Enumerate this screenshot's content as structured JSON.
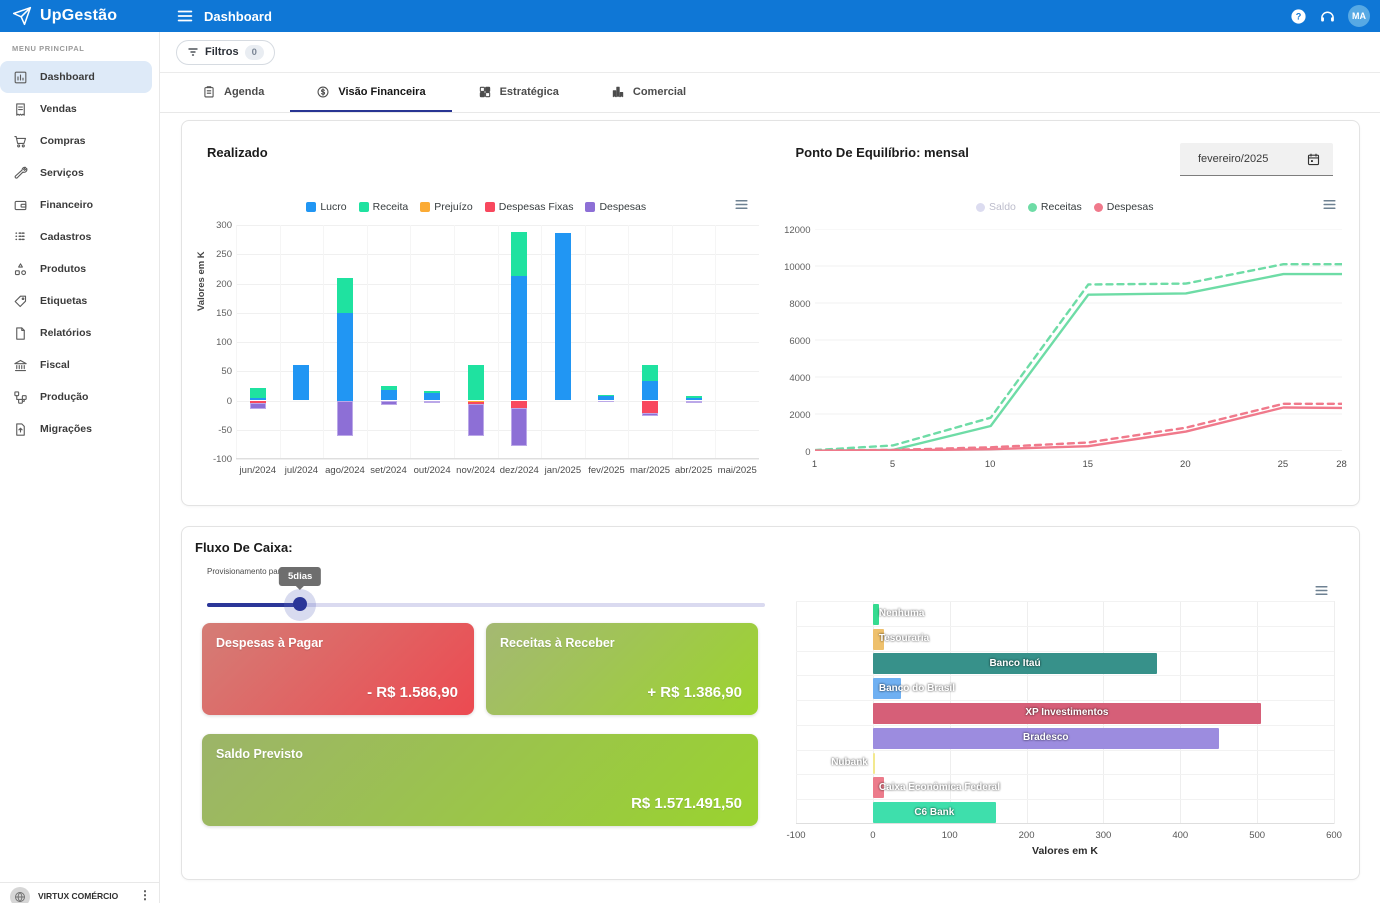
{
  "app": {
    "name": "UpGestão",
    "page_title": "Dashboard",
    "avatar_initials": "MA",
    "topbar_color": "#0f77d6"
  },
  "sidebar": {
    "section_label": "MENU PRINCIPAL",
    "items": [
      {
        "label": "Dashboard",
        "icon": "dashboard-icon",
        "active": true
      },
      {
        "label": "Vendas",
        "icon": "receipt-icon"
      },
      {
        "label": "Compras",
        "icon": "cart-icon"
      },
      {
        "label": "Serviços",
        "icon": "wrench-icon"
      },
      {
        "label": "Financeiro",
        "icon": "wallet-icon"
      },
      {
        "label": "Cadastros",
        "icon": "grid-icon"
      },
      {
        "label": "Produtos",
        "icon": "shapes-icon"
      },
      {
        "label": "Etiquetas",
        "icon": "tag-icon"
      },
      {
        "label": "Relatórios",
        "icon": "file-icon"
      },
      {
        "label": "Fiscal",
        "icon": "bank-icon"
      },
      {
        "label": "Produção",
        "icon": "flow-icon"
      },
      {
        "label": "Migrações",
        "icon": "file-upload-icon"
      }
    ],
    "footer": {
      "company": "VIRTUX COMÉRCIO"
    }
  },
  "filters": {
    "label": "Filtros",
    "count": "0"
  },
  "tabs": [
    {
      "label": "Agenda",
      "icon": "clipboard-icon"
    },
    {
      "label": "Visão Financeira",
      "icon": "coin-icon",
      "active": true
    },
    {
      "label": "Estratégica",
      "icon": "strategy-icon"
    },
    {
      "label": "Comercial",
      "icon": "chart-icon"
    }
  ],
  "panels": {
    "realizado": {
      "title": "Realizado"
    },
    "equilibrio": {
      "title": "Ponto De Equilíbrio: mensal",
      "period_value": "fevereiro/2025"
    },
    "fluxo": {
      "title": "Fluxo De Caixa:",
      "slider_label": "Provisionamento para",
      "slider_tooltip": "5dias",
      "cards": [
        {
          "title": "Despesas à Pagar",
          "value": "- R$ 1.586,90",
          "gradient": [
            "#d47d76",
            "#ec4a51"
          ],
          "wide": false
        },
        {
          "title": "Receitas à Receber",
          "value": "+ R$ 1.386,90",
          "gradient": [
            "#a4b873",
            "#9cd42e"
          ],
          "wide": false
        },
        {
          "title": "Saldo Previsto",
          "value": "R$ 1.571.491,50",
          "gradient": [
            "#9cb469",
            "#9ad32f"
          ],
          "wide": true
        }
      ]
    }
  },
  "chart_data": [
    {
      "id": "realizado",
      "type": "bar",
      "stacked": true,
      "title": "Realizado",
      "ylabel": "Valores em K",
      "ylim": [
        -100,
        300
      ],
      "yticks": [
        300,
        250,
        200,
        150,
        100,
        50,
        0,
        -50,
        -100
      ],
      "categories": [
        "jun/2024",
        "jul/2024",
        "ago/2024",
        "set/2024",
        "out/2024",
        "nov/2024",
        "dez/2024",
        "jan/2025",
        "fev/2025",
        "mar/2025",
        "abr/2025",
        "mai/2025"
      ],
      "series": [
        {
          "name": "Lucro",
          "color": "#2196f3",
          "values": [
            5,
            60,
            150,
            18,
            13,
            0,
            212,
            286,
            8,
            33,
            4,
            0
          ]
        },
        {
          "name": "Receita",
          "color": "#1fe2a0",
          "values": [
            16,
            0,
            59,
            7,
            3,
            60,
            76,
            0,
            2,
            27,
            3,
            0
          ]
        },
        {
          "name": "Prejuízo",
          "color": "#fbab35",
          "values": [
            0,
            0,
            0,
            0,
            0,
            -3,
            0,
            0,
            0,
            0,
            0,
            0
          ]
        },
        {
          "name": "Despesas Fixas",
          "color": "#f8485e",
          "values": [
            -4,
            0,
            0,
            0,
            0,
            -3,
            -13,
            0,
            0,
            -22,
            0,
            0
          ]
        },
        {
          "name": "Despesas",
          "color": "#8d6fd6",
          "border": "#bba8e8",
          "values": [
            -11,
            0,
            -60,
            -7,
            -4,
            -54,
            -64,
            0,
            -3,
            -5,
            -4,
            0
          ]
        }
      ],
      "legend_position": "top",
      "grid": true
    },
    {
      "id": "ponto-equilibrio",
      "type": "line",
      "title": "Ponto De Equilíbrio: mensal",
      "x": [
        1,
        5,
        10,
        15,
        20,
        25,
        28
      ],
      "xticks": [
        1,
        5,
        10,
        15,
        20,
        25,
        28
      ],
      "ylim": [
        0,
        12000
      ],
      "yticks": [
        12000,
        10000,
        8000,
        6000,
        4000,
        2000,
        0
      ],
      "legend": [
        {
          "name": "Saldo",
          "color": "#dcdcf0",
          "muted": true
        },
        {
          "name": "Receitas",
          "color": "#6edca6"
        },
        {
          "name": "Despesas",
          "color": "#f0798b"
        }
      ],
      "series": [
        {
          "name": "Receitas projetado",
          "color": "#6edca6",
          "dash": true,
          "values": [
            50,
            300,
            1800,
            9000,
            9050,
            10100,
            10100
          ]
        },
        {
          "name": "Receitas",
          "color": "#6edca6",
          "dash": false,
          "values": [
            20,
            60,
            1350,
            8450,
            8520,
            9560,
            9560
          ]
        },
        {
          "name": "Despesas projetado",
          "color": "#f0798b",
          "dash": true,
          "values": [
            20,
            60,
            200,
            460,
            1260,
            2550,
            2550
          ]
        },
        {
          "name": "Despesas",
          "color": "#f0798b",
          "dash": false,
          "values": [
            10,
            30,
            100,
            260,
            1050,
            2350,
            2330
          ]
        }
      ],
      "legend_position": "top",
      "grid": true
    },
    {
      "id": "fluxo-caixa-contas",
      "type": "bar-horizontal",
      "xlabel": "Valores em K",
      "xlim": [
        -100,
        600
      ],
      "xticks": [
        -100,
        0,
        100,
        200,
        300,
        400,
        500,
        600
      ],
      "bars": [
        {
          "label": "Nenhuma",
          "value": 8,
          "color": "#35db90"
        },
        {
          "label": "Tesouraria",
          "value": 15,
          "color": "#eec06c"
        },
        {
          "label": "Banco Itaú",
          "value": 370,
          "color": "#37918a"
        },
        {
          "label": "Banco do Brasil",
          "value": 37,
          "color": "#6fb0f2"
        },
        {
          "label": "XP Investimentos",
          "value": 505,
          "color": "#d65f78"
        },
        {
          "label": "Bradesco",
          "value": 450,
          "color": "#9c8cdf"
        },
        {
          "label": "Nubank",
          "value": 1,
          "color": "#f3e98f",
          "label_side": "left"
        },
        {
          "label": "Caixa Econômica Federal",
          "value": 15,
          "color": "#ec7b8b"
        },
        {
          "label": "C6 Bank",
          "value": 160,
          "color": "#3edfac"
        }
      ],
      "grid": true
    }
  ]
}
